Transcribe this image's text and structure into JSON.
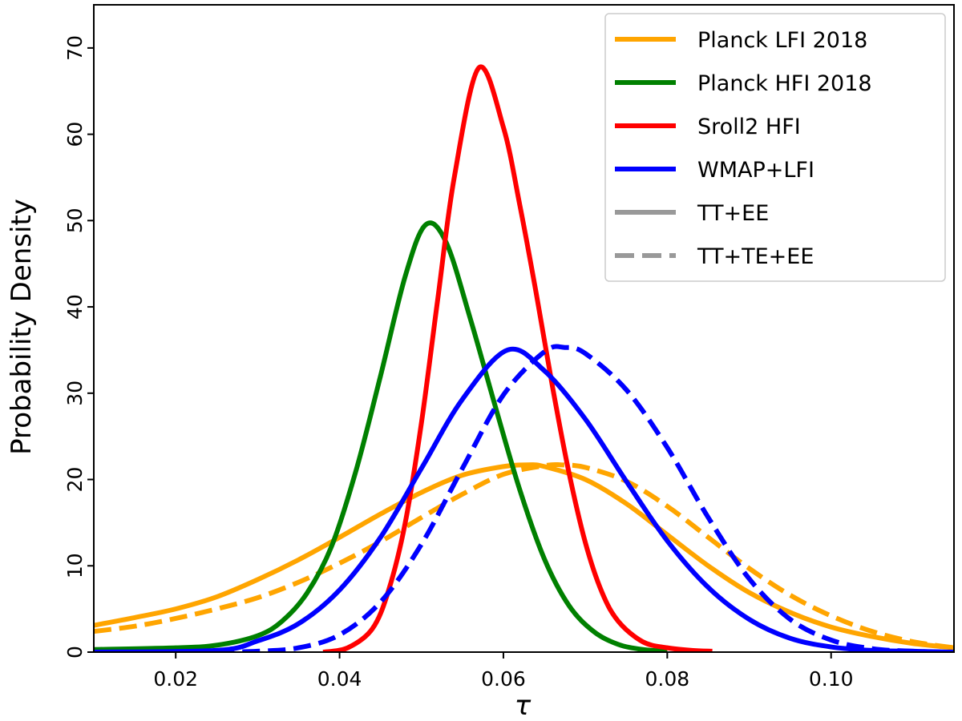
{
  "chart_data": {
    "type": "line",
    "xlabel": "τ",
    "ylabel": "Probability Density",
    "xlim": [
      0.01,
      0.115
    ],
    "ylim": [
      0,
      75
    ],
    "xticks": [
      0.02,
      0.04,
      0.06,
      0.08,
      0.1
    ],
    "xtick_labels": [
      "0.02",
      "0.04",
      "0.06",
      "0.08",
      "0.10"
    ],
    "yticks": [
      0,
      10,
      20,
      30,
      40,
      50,
      60,
      70
    ],
    "ytick_labels": [
      "0",
      "10",
      "20",
      "30",
      "40",
      "50",
      "60",
      "70"
    ],
    "grid": false,
    "legend_position": "top-right",
    "legend": [
      {
        "label": "Planck LFI 2018",
        "color": "#FFA500",
        "style": "solid"
      },
      {
        "label": "Planck HFI 2018",
        "color": "#008000",
        "style": "solid"
      },
      {
        "label": "Sroll2 HFI",
        "color": "#FF0000",
        "style": "solid"
      },
      {
        "label": "WMAP+LFI",
        "color": "#0000FF",
        "style": "solid"
      },
      {
        "label": "TT+EE",
        "color": "#999999",
        "style": "solid"
      },
      {
        "label": "TT+TE+EE",
        "color": "#999999",
        "style": "dashed"
      }
    ],
    "series": [
      {
        "name": "Planck LFI 2018",
        "color": "#FFA500",
        "style": "solid",
        "x": [
          0.01,
          0.015,
          0.02,
          0.025,
          0.03,
          0.035,
          0.04,
          0.045,
          0.05,
          0.055,
          0.06,
          0.063,
          0.065,
          0.07,
          0.075,
          0.08,
          0.085,
          0.09,
          0.095,
          0.1,
          0.105,
          0.11,
          0.115
        ],
        "y": [
          3.1,
          4.0,
          5.0,
          6.4,
          8.4,
          10.7,
          13.3,
          16.0,
          18.5,
          20.5,
          21.5,
          21.7,
          21.5,
          20.0,
          17.2,
          13.6,
          10.0,
          6.9,
          4.6,
          2.9,
          1.8,
          1.0,
          0.5
        ]
      },
      {
        "name": "Planck LFI 2018",
        "color": "#FFA500",
        "style": "dashed",
        "x": [
          0.01,
          0.015,
          0.02,
          0.025,
          0.03,
          0.035,
          0.04,
          0.045,
          0.05,
          0.055,
          0.06,
          0.065,
          0.067,
          0.07,
          0.075,
          0.08,
          0.085,
          0.09,
          0.095,
          0.1,
          0.105,
          0.11,
          0.115
        ],
        "y": [
          2.4,
          3.0,
          3.9,
          5.0,
          6.3,
          8.1,
          10.3,
          12.8,
          15.6,
          18.3,
          20.6,
          21.6,
          21.7,
          21.4,
          19.8,
          16.9,
          13.3,
          9.7,
          6.6,
          4.2,
          2.4,
          1.2,
          0.5
        ]
      },
      {
        "name": "Planck HFI 2018",
        "color": "#008000",
        "style": "solid",
        "x": [
          0.01,
          0.02,
          0.025,
          0.03,
          0.033,
          0.036,
          0.039,
          0.042,
          0.045,
          0.048,
          0.0505,
          0.053,
          0.056,
          0.059,
          0.062,
          0.065,
          0.068,
          0.071,
          0.074,
          0.077,
          0.08
        ],
        "y": [
          0.3,
          0.5,
          0.8,
          1.9,
          3.6,
          6.8,
          12.2,
          21.0,
          32.0,
          43.5,
          49.5,
          47.5,
          38.5,
          28.5,
          18.8,
          10.8,
          5.4,
          2.4,
          0.9,
          0.3,
          0.1
        ]
      },
      {
        "name": "Sroll2 HFI",
        "color": "#FF0000",
        "style": "solid",
        "x": [
          0.038,
          0.041,
          0.044,
          0.046,
          0.048,
          0.05,
          0.052,
          0.054,
          0.057,
          0.06,
          0.062,
          0.064,
          0.066,
          0.068,
          0.07,
          0.072,
          0.074,
          0.077,
          0.08,
          0.083,
          0.0855
        ],
        "y": [
          0.0,
          0.5,
          2.7,
          7.2,
          14.9,
          26.6,
          41.0,
          55.0,
          67.7,
          60.8,
          51.8,
          41.6,
          30.7,
          20.8,
          12.7,
          7.0,
          3.6,
          1.2,
          0.5,
          0.2,
          0.1
        ]
      },
      {
        "name": "WMAP+LFI",
        "color": "#0000FF",
        "style": "solid",
        "x": [
          0.01,
          0.025,
          0.03,
          0.035,
          0.04,
          0.045,
          0.05,
          0.055,
          0.0605,
          0.065,
          0.07,
          0.075,
          0.08,
          0.085,
          0.09,
          0.095,
          0.1,
          0.105,
          0.11,
          0.115
        ],
        "y": [
          0.0,
          0.2,
          1.3,
          3.3,
          7.2,
          13.3,
          21.3,
          29.3,
          35.0,
          32.6,
          27.0,
          19.8,
          12.9,
          7.5,
          3.8,
          1.6,
          0.6,
          0.2,
          0.1,
          0.0
        ]
      },
      {
        "name": "WMAP+LFI",
        "color": "#0000FF",
        "style": "dashed",
        "x": [
          0.025,
          0.03,
          0.035,
          0.04,
          0.045,
          0.05,
          0.055,
          0.06,
          0.065,
          0.0675,
          0.07,
          0.075,
          0.08,
          0.085,
          0.09,
          0.095,
          0.1,
          0.105,
          0.11,
          0.115
        ],
        "y": [
          0.0,
          0.1,
          0.5,
          2.0,
          5.8,
          12.5,
          21.3,
          29.8,
          34.8,
          35.3,
          34.6,
          30.4,
          23.7,
          15.6,
          8.5,
          3.8,
          1.4,
          0.4,
          0.1,
          0.0
        ]
      }
    ]
  }
}
